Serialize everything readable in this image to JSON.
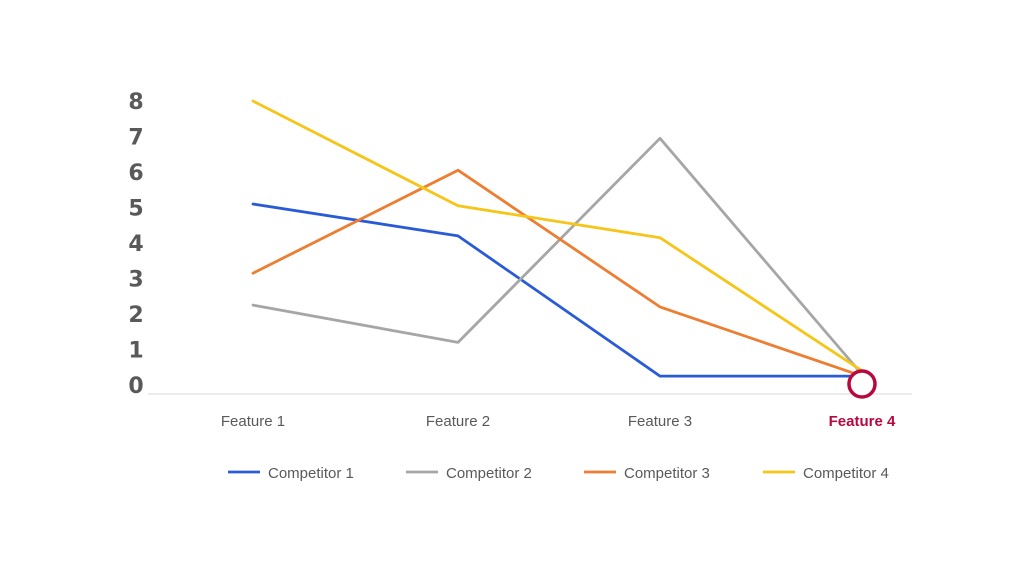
{
  "chart_data": {
    "type": "line",
    "categories": [
      "Feature 1",
      "Feature 2",
      "Feature 3",
      "Feature 4"
    ],
    "highlight_category": "Feature 4",
    "ylim": [
      0,
      8
    ],
    "yticks": [
      0,
      1,
      2,
      3,
      4,
      5,
      6,
      7,
      8
    ],
    "grid": false,
    "legend_position": "bottom",
    "highlight_color": "#b8083e",
    "series": [
      {
        "name": "Competitor 1",
        "color": "#2a5bd7",
        "values": [
          5.1,
          4.2,
          0.25,
          0.25
        ]
      },
      {
        "name": "Competitor 2",
        "color": "#a6a6a6",
        "values": [
          2.25,
          1.2,
          6.95,
          0.3
        ]
      },
      {
        "name": "Competitor 3",
        "color": "#ed7d31",
        "values": [
          3.15,
          6.05,
          2.2,
          0.25
        ]
      },
      {
        "name": "Competitor 4",
        "color": "#f5c518",
        "values": [
          8.0,
          5.05,
          4.15,
          0.4
        ]
      }
    ]
  }
}
